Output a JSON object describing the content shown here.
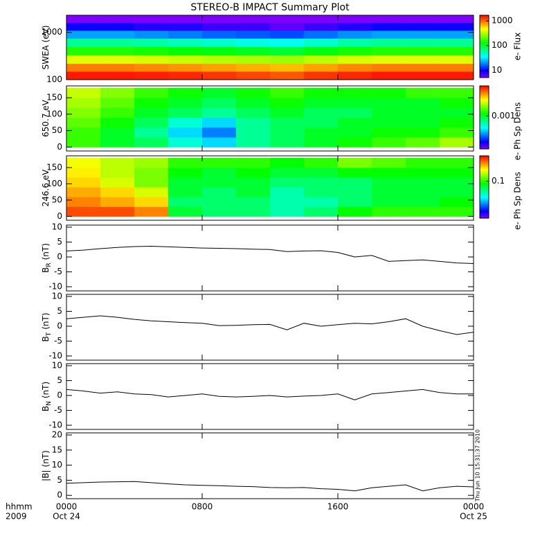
{
  "title": "STEREO-B IMPACT Summary Plot",
  "xlim": [
    0,
    24
  ],
  "xticks": [
    {
      "value": 0,
      "label": "0000"
    },
    {
      "value": 8,
      "label": "0800"
    },
    {
      "value": 16,
      "label": "1600"
    },
    {
      "value": 24,
      "label": "0000"
    }
  ],
  "xtick_dates": [
    {
      "value": 0,
      "label": "Oct 24"
    },
    {
      "value": 24,
      "label": "Oct 25"
    }
  ],
  "x_axis_labels": [
    "hhmm",
    "2009"
  ],
  "timestamp": "Thu Jun 10 15:31:37 2010",
  "chart_data": [
    {
      "type": "heatmap",
      "ylabel": "SWEA (eV)",
      "ylog": true,
      "ylim": [
        100,
        2300
      ],
      "yticks": [
        100,
        1000
      ],
      "xbins": [
        0,
        2,
        4,
        6,
        8,
        10,
        12,
        14,
        16,
        18,
        20,
        22,
        24
      ],
      "ybins": [
        100,
        150,
        220,
        330,
        500,
        750,
        1100,
        1600,
        2300
      ],
      "values": [
        [
          1500,
          1500,
          1450,
          1400,
          1300,
          1200,
          1100,
          1300,
          1400,
          1500,
          1500,
          1500
        ],
        [
          900,
          900,
          850,
          800,
          750,
          700,
          650,
          750,
          850,
          900,
          900,
          900
        ],
        [
          400,
          400,
          380,
          350,
          320,
          300,
          280,
          330,
          380,
          400,
          400,
          400
        ],
        [
          150,
          150,
          140,
          130,
          120,
          110,
          100,
          120,
          140,
          150,
          150,
          150
        ],
        [
          60,
          60,
          55,
          50,
          45,
          40,
          38,
          45,
          55,
          60,
          60,
          60
        ],
        [
          22,
          22,
          20,
          18,
          16,
          15,
          14,
          17,
          20,
          22,
          22,
          22
        ],
        [
          9,
          9,
          8,
          8,
          7,
          7,
          6,
          7,
          8,
          9,
          9,
          9
        ],
        [
          5,
          5,
          5,
          5,
          5,
          5,
          5,
          5,
          5,
          5,
          5,
          5
        ]
      ],
      "zlog": true,
      "zlim": [
        5,
        1700
      ],
      "zticks": [
        10,
        100,
        1000
      ],
      "zlabel": "e- Flux"
    },
    {
      "type": "heatmap",
      "ylabel": "650.7 eV",
      "ylim": [
        -12,
        186
      ],
      "yticks": [
        0,
        50,
        100,
        150
      ],
      "xbins": [
        0,
        2,
        4,
        6,
        8,
        10,
        12,
        14,
        16,
        18,
        20,
        22,
        24
      ],
      "ybins": [
        0,
        30,
        60,
        90,
        120,
        150,
        180
      ],
      "values": [
        [
          0.0012,
          0.001,
          0.0009,
          0.0007,
          0.0006,
          0.0008,
          0.0009,
          0.001,
          0.0011,
          0.0012,
          0.0013,
          0.0015
        ],
        [
          0.0012,
          0.001,
          0.0008,
          0.0006,
          0.0005,
          0.0008,
          0.0009,
          0.001,
          0.001,
          0.0011,
          0.0011,
          0.0012
        ],
        [
          0.0013,
          0.0011,
          0.0009,
          0.0007,
          0.0006,
          0.0008,
          0.0009,
          0.0009,
          0.001,
          0.001,
          0.001,
          0.0011
        ],
        [
          0.0014,
          0.0012,
          0.001,
          0.0009,
          0.0008,
          0.0009,
          0.001,
          0.0009,
          0.0009,
          0.001,
          0.001,
          0.001
        ],
        [
          0.0015,
          0.0013,
          0.0011,
          0.001,
          0.0009,
          0.001,
          0.0011,
          0.001,
          0.001,
          0.001,
          0.001,
          0.0011
        ],
        [
          0.0016,
          0.0014,
          0.0012,
          0.0011,
          0.001,
          0.0011,
          0.0012,
          0.0011,
          0.0011,
          0.0011,
          0.0012,
          0.0012
        ]
      ],
      "zlog": true,
      "zlim": [
        0.0003,
        0.003
      ],
      "zticks": [
        0.001
      ],
      "zlabel": "e- Ph Sp Dens"
    },
    {
      "type": "heatmap",
      "ylabel": "246.6 eV",
      "ylim": [
        -12,
        186
      ],
      "yticks": [
        0,
        50,
        100,
        150
      ],
      "xbins": [
        0,
        2,
        4,
        6,
        8,
        10,
        12,
        14,
        16,
        18,
        20,
        22,
        24
      ],
      "ybins": [
        0,
        30,
        60,
        90,
        120,
        150,
        180
      ],
      "values": [
        [
          0.25,
          0.25,
          0.22,
          0.08,
          0.07,
          0.07,
          0.06,
          0.07,
          0.09,
          0.1,
          0.1,
          0.1
        ],
        [
          0.22,
          0.2,
          0.18,
          0.07,
          0.07,
          0.07,
          0.06,
          0.06,
          0.07,
          0.08,
          0.08,
          0.09
        ],
        [
          0.2,
          0.18,
          0.15,
          0.08,
          0.07,
          0.08,
          0.06,
          0.07,
          0.07,
          0.08,
          0.08,
          0.08
        ],
        [
          0.18,
          0.15,
          0.12,
          0.08,
          0.08,
          0.08,
          0.07,
          0.07,
          0.07,
          0.08,
          0.08,
          0.08
        ],
        [
          0.17,
          0.14,
          0.12,
          0.09,
          0.08,
          0.09,
          0.08,
          0.08,
          0.09,
          0.09,
          0.09,
          0.09
        ],
        [
          0.16,
          0.14,
          0.13,
          0.1,
          0.1,
          0.1,
          0.09,
          0.1,
          0.12,
          0.11,
          0.1,
          0.1
        ]
      ],
      "zlog": true,
      "zlim": [
        0.02,
        0.3
      ],
      "zticks": [
        0.1
      ],
      "zlabel": "e- Ph Sp Dens"
    },
    {
      "type": "line",
      "ylabel": "B",
      "ylabel_sub": "R",
      "ylabel_unit": "(nT)",
      "ylim": [
        -11.4,
        10.7
      ],
      "yticks": [
        -10,
        -5,
        0,
        5,
        10
      ],
      "x": [
        0,
        1,
        2,
        3,
        4,
        5,
        6,
        7,
        8,
        9,
        10,
        11,
        12,
        13,
        14,
        15,
        16,
        17,
        18,
        19,
        20,
        21,
        22,
        23,
        24
      ],
      "values": [
        2,
        2.3,
        2.8,
        3.2,
        3.5,
        3.6,
        3.4,
        3.2,
        3.0,
        2.9,
        2.8,
        2.6,
        2.5,
        1.8,
        2.0,
        2.1,
        1.5,
        0.0,
        0.5,
        -1.5,
        -1.2,
        -1.0,
        -1.5,
        -2.0,
        -2.2
      ]
    },
    {
      "type": "line",
      "ylabel": "B",
      "ylabel_sub": "T",
      "ylabel_unit": "(nT)",
      "ylim": [
        -11.4,
        10.7
      ],
      "yticks": [
        -10,
        -5,
        0,
        5,
        10
      ],
      "x": [
        0,
        1,
        2,
        3,
        4,
        5,
        6,
        7,
        8,
        9,
        10,
        11,
        12,
        13,
        14,
        15,
        16,
        17,
        18,
        19,
        20,
        21,
        22,
        23,
        24
      ],
      "values": [
        2.5,
        3.0,
        3.5,
        3.0,
        2.3,
        1.8,
        1.5,
        1.2,
        1.0,
        0.2,
        0.3,
        0.5,
        0.6,
        -1.2,
        1.0,
        0.0,
        0.5,
        1.0,
        0.8,
        1.5,
        2.5,
        0.0,
        -1.5,
        -2.8,
        -2.0
      ]
    },
    {
      "type": "line",
      "ylabel": "B",
      "ylabel_sub": "N",
      "ylabel_unit": "(nT)",
      "ylim": [
        -11.4,
        10.7
      ],
      "yticks": [
        -10,
        -5,
        0,
        5,
        10
      ],
      "x": [
        0,
        1,
        2,
        3,
        4,
        5,
        6,
        7,
        8,
        9,
        10,
        11,
        12,
        13,
        14,
        15,
        16,
        17,
        18,
        19,
        20,
        21,
        22,
        23,
        24
      ],
      "values": [
        2.0,
        1.5,
        0.8,
        1.2,
        0.5,
        0.3,
        -0.5,
        0.0,
        0.5,
        -0.3,
        -0.5,
        -0.3,
        0.0,
        -0.5,
        -0.2,
        0.0,
        0.5,
        -1.5,
        0.5,
        1.0,
        1.5,
        2.0,
        1.0,
        0.5,
        0.5
      ]
    },
    {
      "type": "line",
      "ylabel": "|B|",
      "ylabel_unit": "(nT)",
      "ylim": [
        -1.1,
        20.7
      ],
      "yticks": [
        0,
        5,
        10,
        15,
        20
      ],
      "x": [
        0,
        1,
        2,
        3,
        4,
        5,
        6,
        7,
        8,
        9,
        10,
        11,
        12,
        13,
        14,
        15,
        16,
        17,
        18,
        19,
        20,
        21,
        22,
        23,
        24
      ],
      "values": [
        4.0,
        4.2,
        4.4,
        4.5,
        4.6,
        4.2,
        3.8,
        3.5,
        3.3,
        3.2,
        3.0,
        2.9,
        2.6,
        2.5,
        2.6,
        2.2,
        2.0,
        1.5,
        2.5,
        3.0,
        3.5,
        1.5,
        2.5,
        3.0,
        2.8
      ]
    }
  ]
}
